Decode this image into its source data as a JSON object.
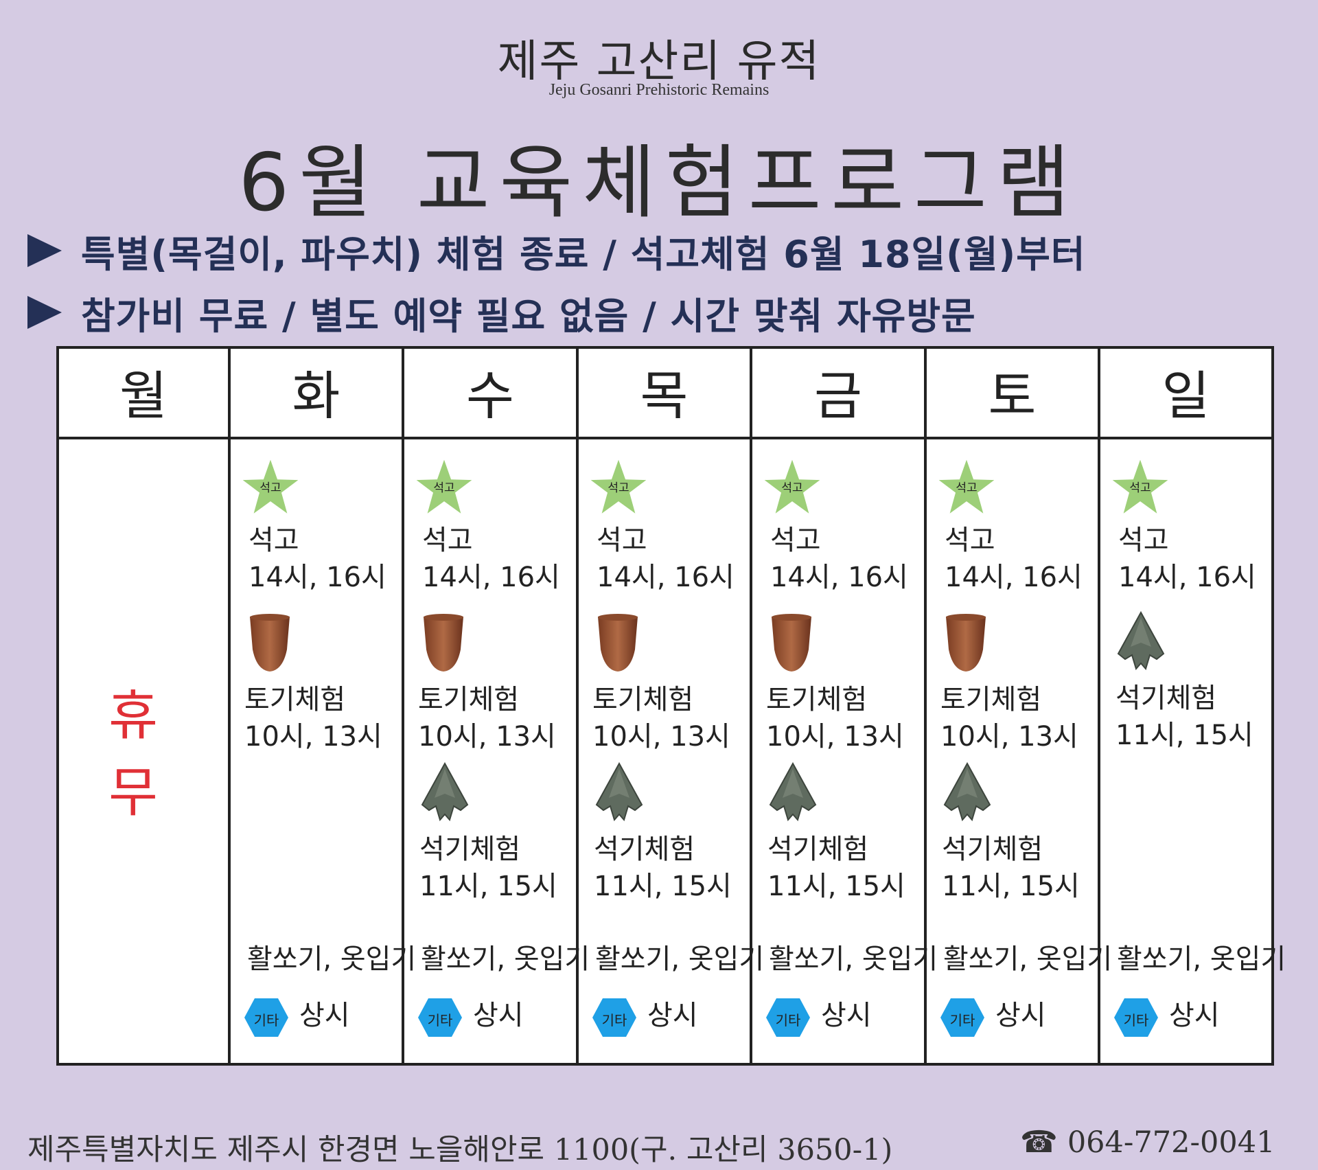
{
  "header": {
    "site_name": "제주 고산리 유적",
    "site_name_en": "Jeju Gosanri Prehistoric Remains",
    "title": "6월 교육체험프로그램"
  },
  "notices": [
    "특별(목걸이, 파우치) 체험 종료 / 석고체험 6월 18일(월)부터",
    "참가비 무료 / 별도 예약 필요 없음 / 시간 맞춰 자유방문"
  ],
  "days": [
    "월",
    "화",
    "수",
    "목",
    "금",
    "토",
    "일"
  ],
  "closed_label": "휴 무",
  "schedule": [
    {},
    {
      "plaster_badge": "석고",
      "plaster": "석고",
      "plaster_time": "14시, 16시",
      "pottery": "토기체험",
      "pottery_time": "10시, 13시",
      "archery": "활쏘기, 옷입기",
      "etc_badge": "기타",
      "etc": "상시"
    },
    {
      "plaster_badge": "석고",
      "plaster": "석고",
      "plaster_time": "14시, 16시",
      "pottery": "토기체험",
      "pottery_time": "10시, 13시",
      "stone": "석기체험",
      "stone_time": "11시, 15시",
      "archery": "활쏘기, 옷입기",
      "etc_badge": "기타",
      "etc": "상시"
    },
    {
      "plaster_badge": "석고",
      "plaster": "석고",
      "plaster_time": "14시, 16시",
      "pottery": "토기체험",
      "pottery_time": "10시, 13시",
      "stone": "석기체험",
      "stone_time": "11시, 15시",
      "archery": "활쏘기, 옷입기",
      "etc_badge": "기타",
      "etc": "상시"
    },
    {
      "plaster_badge": "석고",
      "plaster": "석고",
      "plaster_time": "14시, 16시",
      "pottery": "토기체험",
      "pottery_time": "10시, 13시",
      "stone": "석기체험",
      "stone_time": "11시, 15시",
      "archery": "활쏘기, 옷입기",
      "etc_badge": "기타",
      "etc": "상시"
    },
    {
      "plaster_badge": "석고",
      "plaster": "석고",
      "plaster_time": "14시, 16시",
      "pottery": "토기체험",
      "pottery_time": "10시, 13시",
      "stone": "석기체험",
      "stone_time": "11시, 15시",
      "archery": "활쏘기, 옷입기",
      "etc_badge": "기타",
      "etc": "상시"
    },
    {
      "plaster_badge": "석고",
      "plaster": "석고",
      "plaster_time": "14시, 16시",
      "stone": "석기체험",
      "stone_time": "11시, 15시",
      "archery": "활쏘기, 옷입기",
      "etc_badge": "기타",
      "etc": "상시"
    }
  ],
  "footer": {
    "address": "제주특별자치도 제주시 한경면 노을해안로 1100(구. 고산리 3650-1)",
    "phone_icon": "phone-icon",
    "phone": "064-772-0041"
  },
  "colors": {
    "background": "#d5cbe3",
    "notice_text": "#243056",
    "closed_text": "#e03036",
    "star_badge": "#9dcf78",
    "etc_badge": "#1fa0e6"
  }
}
